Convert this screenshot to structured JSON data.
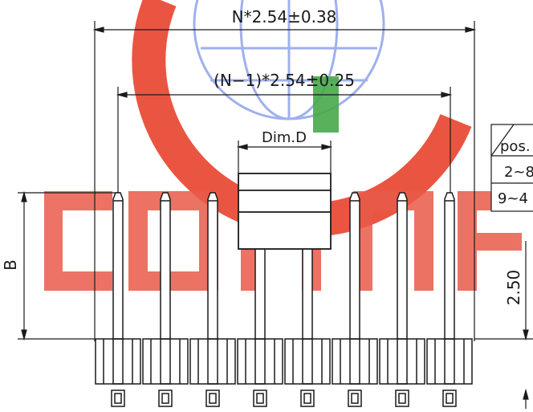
{
  "watermark": {
    "brand_text": "CONNFLY",
    "logo": "globe-logo",
    "colors": {
      "red": "#e8432e",
      "green": "#2f9a2f",
      "blue": "#4a68d8",
      "ink": "#1a1a1a"
    }
  },
  "dimensions": {
    "overall": "N*2.54±0.38",
    "pitch_span": "(N−1)*2.54±0.25",
    "dim_d": "Dim.D",
    "height_b": "B",
    "height_250": "2.50"
  },
  "table": {
    "header": "pos.",
    "rows": [
      "2~8",
      "9~4"
    ]
  }
}
